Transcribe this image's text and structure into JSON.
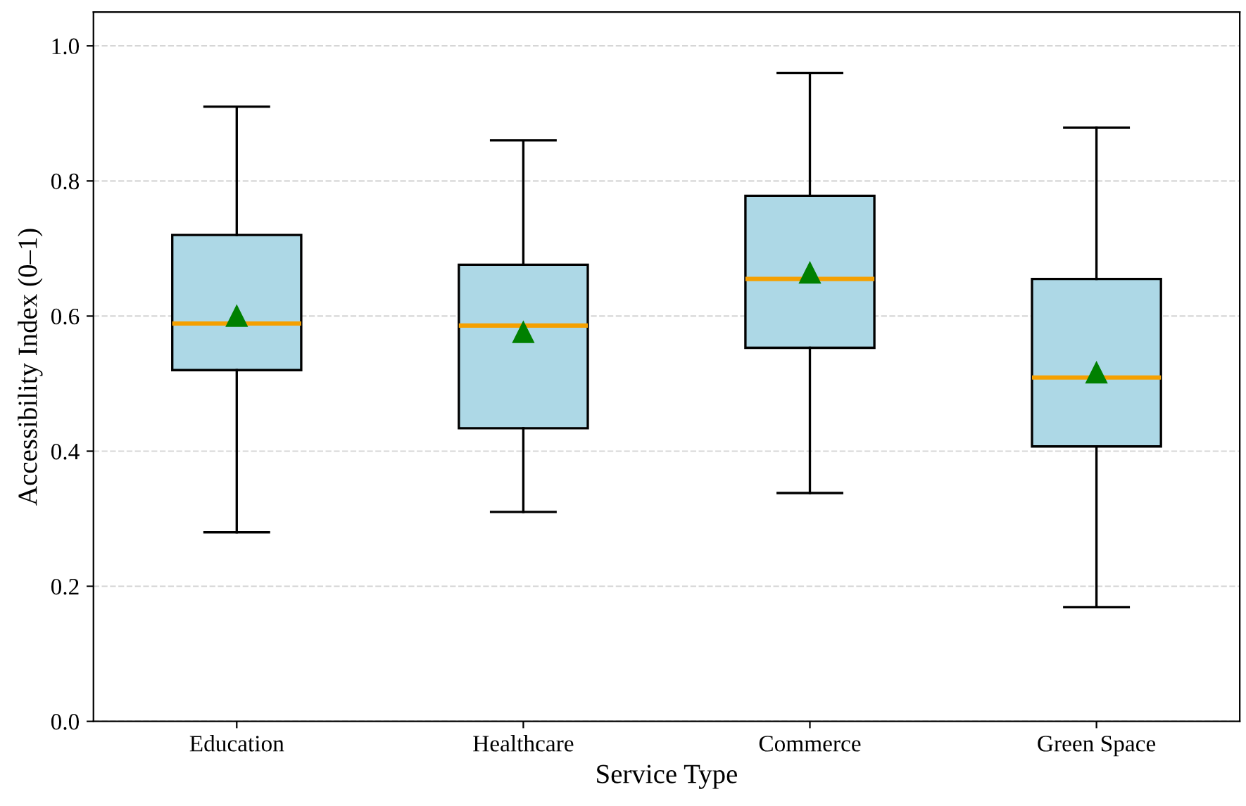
{
  "chart_data": {
    "type": "box",
    "xlabel": "Service Type",
    "ylabel": "Accessibility Index (0–1)",
    "categories": [
      "Education",
      "Healthcare",
      "Commerce",
      "Green Space"
    ],
    "boxes": [
      {
        "low": 0.28,
        "q1": 0.52,
        "median": 0.589,
        "q3": 0.72,
        "high": 0.91,
        "mean": 0.6
      },
      {
        "low": 0.31,
        "q1": 0.434,
        "median": 0.586,
        "q3": 0.676,
        "high": 0.86,
        "mean": 0.576
      },
      {
        "low": 0.338,
        "q1": 0.553,
        "median": 0.655,
        "q3": 0.778,
        "high": 0.96,
        "mean": 0.664
      },
      {
        "low": 0.169,
        "q1": 0.407,
        "median": 0.509,
        "q3": 0.655,
        "high": 0.879,
        "mean": 0.516
      }
    ],
    "color": "#add8e6",
    "marker": "triangle",
    "grid": "y",
    "ylim": [
      0,
      1.05
    ],
    "yticks": [
      {
        "value": 0,
        "label": "0.0"
      },
      0.2,
      0.4,
      0.6,
      0.8,
      {
        "value": 1,
        "label": "1.0"
      }
    ]
  }
}
